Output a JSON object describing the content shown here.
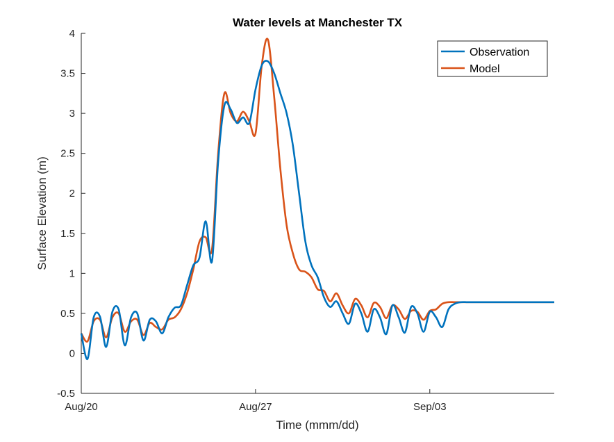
{
  "chart_data": {
    "type": "line",
    "title": "Water levels at Manchester TX",
    "xlabel": "Time (mmm/dd)",
    "ylabel": "Surface Elevation (m)",
    "xlim": [
      "2017-08-20",
      "2017-09-08T00:00"
    ],
    "ylim": [
      -0.5,
      4
    ],
    "x_ticks": [
      {
        "value": "2017-08-20",
        "label": "Aug/20"
      },
      {
        "value": "2017-08-27",
        "label": "Aug/27"
      },
      {
        "value": "2017-09-03",
        "label": "Sep/03"
      }
    ],
    "y_ticks": [
      {
        "value": -0.5,
        "label": "-0.5"
      },
      {
        "value": 0,
        "label": "0"
      },
      {
        "value": 0.5,
        "label": "0.5"
      },
      {
        "value": 1,
        "label": "1"
      },
      {
        "value": 1.5,
        "label": "1.5"
      },
      {
        "value": 2,
        "label": "2"
      },
      {
        "value": 2.5,
        "label": "2.5"
      },
      {
        "value": 3,
        "label": "3"
      },
      {
        "value": 3.5,
        "label": "3.5"
      },
      {
        "value": 4,
        "label": "4"
      }
    ],
    "grid": false,
    "legend_position": "top-right",
    "series": [
      {
        "name": "Observation",
        "color": "#0072BD",
        "x": [
          "2017-08-20T00:00",
          "2017-08-20T06:00",
          "2017-08-20T12:00",
          "2017-08-20T18:00",
          "2017-08-21T00:00",
          "2017-08-21T06:00",
          "2017-08-21T12:00",
          "2017-08-21T18:00",
          "2017-08-22T00:00",
          "2017-08-22T06:00",
          "2017-08-22T12:00",
          "2017-08-22T18:00",
          "2017-08-23T00:00",
          "2017-08-23T06:00",
          "2017-08-23T12:00",
          "2017-08-23T18:00",
          "2017-08-24T00:00",
          "2017-08-24T06:00",
          "2017-08-24T12:00",
          "2017-08-24T18:00",
          "2017-08-25T00:00",
          "2017-08-25T06:00",
          "2017-08-25T12:00",
          "2017-08-25T18:00",
          "2017-08-26T00:00",
          "2017-08-26T06:00",
          "2017-08-26T12:00",
          "2017-08-26T18:00",
          "2017-08-27T00:00",
          "2017-08-27T06:00",
          "2017-08-27T12:00",
          "2017-08-27T18:00",
          "2017-08-28T00:00",
          "2017-08-28T06:00",
          "2017-08-28T12:00",
          "2017-08-28T18:00",
          "2017-08-29T00:00",
          "2017-08-29T06:00",
          "2017-08-29T12:00",
          "2017-08-29T18:00",
          "2017-08-30T00:00",
          "2017-08-30T06:00",
          "2017-08-30T12:00",
          "2017-08-30T18:00",
          "2017-08-31T00:00",
          "2017-08-31T06:00",
          "2017-08-31T12:00",
          "2017-08-31T18:00",
          "2017-09-01T00:00",
          "2017-09-01T06:00",
          "2017-09-01T12:00",
          "2017-09-01T18:00",
          "2017-09-02T00:00",
          "2017-09-02T06:00",
          "2017-09-02T12:00",
          "2017-09-02T18:00",
          "2017-09-03T00:00",
          "2017-09-03T06:00",
          "2017-09-03T12:00",
          "2017-09-03T18:00",
          "2017-09-04T00:00",
          "2017-09-04T06:00",
          "2017-09-04T12:00",
          "2017-09-04T18:00",
          "2017-09-05T00:00",
          "2017-09-05T06:00",
          "2017-09-05T12:00",
          "2017-09-05T18:00",
          "2017-09-06T00:00",
          "2017-09-06T06:00",
          "2017-09-06T12:00",
          "2017-09-06T18:00",
          "2017-09-07T00:00",
          "2017-09-07T06:00",
          "2017-09-07T12:00",
          "2017-09-07T18:00",
          "2017-09-08T00:00"
        ],
        "y": [
          0.25,
          -0.07,
          0.45,
          0.46,
          0.08,
          0.52,
          0.55,
          0.1,
          0.45,
          0.5,
          0.16,
          0.42,
          0.4,
          0.25,
          0.45,
          0.57,
          0.6,
          0.85,
          1.1,
          1.2,
          1.65,
          1.15,
          2.4,
          3.1,
          3.05,
          2.88,
          2.95,
          2.88,
          3.3,
          3.6,
          3.65,
          3.5,
          3.25,
          3.0,
          2.6,
          2.0,
          1.4,
          1.1,
          0.95,
          0.7,
          0.58,
          0.65,
          0.5,
          0.37,
          0.62,
          0.5,
          0.27,
          0.55,
          0.45,
          0.24,
          0.6,
          0.45,
          0.26,
          0.58,
          0.5,
          0.27,
          0.52,
          0.45,
          0.33,
          0.55,
          0.62,
          0.64,
          0.64,
          0.64,
          0.64,
          0.64,
          0.64,
          0.64,
          0.64,
          0.64,
          0.64,
          0.64,
          0.64,
          0.64,
          0.64,
          0.64,
          0.64
        ]
      },
      {
        "name": "Model",
        "color": "#D95319",
        "x": [
          "2017-08-20T00:00",
          "2017-08-20T06:00",
          "2017-08-20T12:00",
          "2017-08-20T18:00",
          "2017-08-21T00:00",
          "2017-08-21T06:00",
          "2017-08-21T12:00",
          "2017-08-21T18:00",
          "2017-08-22T00:00",
          "2017-08-22T06:00",
          "2017-08-22T12:00",
          "2017-08-22T18:00",
          "2017-08-23T00:00",
          "2017-08-23T06:00",
          "2017-08-23T12:00",
          "2017-08-23T18:00",
          "2017-08-24T00:00",
          "2017-08-24T06:00",
          "2017-08-24T12:00",
          "2017-08-24T18:00",
          "2017-08-25T00:00",
          "2017-08-25T06:00",
          "2017-08-25T12:00",
          "2017-08-25T18:00",
          "2017-08-26T00:00",
          "2017-08-26T06:00",
          "2017-08-26T12:00",
          "2017-08-26T18:00",
          "2017-08-27T00:00",
          "2017-08-27T06:00",
          "2017-08-27T12:00",
          "2017-08-27T18:00",
          "2017-08-28T00:00",
          "2017-08-28T06:00",
          "2017-08-28T12:00",
          "2017-08-28T18:00",
          "2017-08-29T00:00",
          "2017-08-29T06:00",
          "2017-08-29T12:00",
          "2017-08-29T18:00",
          "2017-08-30T00:00",
          "2017-08-30T06:00",
          "2017-08-30T12:00",
          "2017-08-30T18:00",
          "2017-08-31T00:00",
          "2017-08-31T06:00",
          "2017-08-31T12:00",
          "2017-08-31T18:00",
          "2017-09-01T00:00",
          "2017-09-01T06:00",
          "2017-09-01T12:00",
          "2017-09-01T18:00",
          "2017-09-02T00:00",
          "2017-09-02T06:00",
          "2017-09-02T12:00",
          "2017-09-02T18:00",
          "2017-09-03T00:00",
          "2017-09-03T06:00",
          "2017-09-03T12:00",
          "2017-09-03T18:00",
          "2017-09-04T00:00",
          "2017-09-04T06:00",
          "2017-09-04T12:00",
          "2017-09-04T18:00",
          "2017-09-05T00:00",
          "2017-09-05T06:00",
          "2017-09-05T12:00",
          "2017-09-05T18:00",
          "2017-09-06T00:00",
          "2017-09-06T06:00",
          "2017-09-06T12:00",
          "2017-09-06T18:00",
          "2017-09-07T00:00",
          "2017-09-07T06:00",
          "2017-09-07T12:00",
          "2017-09-07T18:00",
          "2017-09-08T00:00"
        ],
        "y": [
          0.25,
          0.15,
          0.4,
          0.42,
          0.2,
          0.45,
          0.5,
          0.27,
          0.4,
          0.42,
          0.23,
          0.38,
          0.33,
          0.3,
          0.42,
          0.45,
          0.55,
          0.75,
          1.05,
          1.4,
          1.45,
          1.3,
          2.5,
          3.25,
          3.0,
          2.9,
          3.02,
          2.9,
          2.75,
          3.6,
          3.92,
          3.2,
          2.3,
          1.6,
          1.25,
          1.05,
          1.02,
          0.95,
          0.8,
          0.78,
          0.65,
          0.75,
          0.6,
          0.5,
          0.68,
          0.6,
          0.45,
          0.63,
          0.58,
          0.44,
          0.6,
          0.55,
          0.43,
          0.53,
          0.52,
          0.42,
          0.53,
          0.55,
          0.62,
          0.64,
          0.64,
          0.64,
          0.64,
          0.64,
          0.64,
          0.64,
          0.64,
          0.64,
          0.64,
          0.64,
          0.64,
          0.64,
          0.64,
          0.64,
          0.64,
          0.64,
          0.64
        ]
      }
    ]
  }
}
